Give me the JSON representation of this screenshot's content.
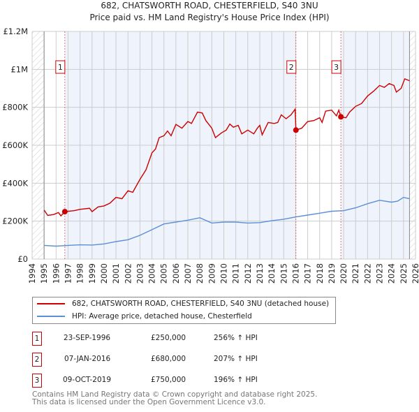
{
  "chart_data": {
    "type": "line",
    "title": "682, CHATSWORTH ROAD, CHESTERFIELD, S40 3NU",
    "subtitle": "Price paid vs. HM Land Registry's House Price Index (HPI)",
    "xlim": [
      1994,
      2026
    ],
    "ylim": [
      0,
      1200000
    ],
    "x_ticks": [
      "1994",
      "1995",
      "1996",
      "1997",
      "1998",
      "1999",
      "2000",
      "2001",
      "2002",
      "2003",
      "2004",
      "2005",
      "2006",
      "2007",
      "2008",
      "2009",
      "2010",
      "2011",
      "2012",
      "2013",
      "2014",
      "2015",
      "2016",
      "2017",
      "2018",
      "2019",
      "2020",
      "2021",
      "2022",
      "2023",
      "2024",
      "2025",
      "2026"
    ],
    "y_ticks": [
      {
        "v": 0,
        "label": "£0"
      },
      {
        "v": 200000,
        "label": "£200K"
      },
      {
        "v": 400000,
        "label": "£400K"
      },
      {
        "v": 600000,
        "label": "£600K"
      },
      {
        "v": 800000,
        "label": "£800K"
      },
      {
        "v": 1000000,
        "label": "£1M"
      },
      {
        "v": 1200000,
        "label": "£1.2M"
      }
    ],
    "grid": true,
    "colors": {
      "property": "#cc0000",
      "hpi": "#5b8fd6",
      "shade": "#eef3fc"
    },
    "series": [
      {
        "name": "682, CHATSWORTH ROAD, CHESTERFIELD, S40 3NU (detached house)",
        "key": "property",
        "x": [
          1995.0,
          1995.3,
          1995.8,
          1996.2,
          1996.4,
          1996.73,
          1997.5,
          1998,
          1998.8,
          1999.0,
          1999.5,
          2000,
          2000.5,
          2001,
          2001.5,
          2002,
          2002.4,
          2003,
          2003.5,
          2004,
          2004.3,
          2004.6,
          2005,
          2005.3,
          2005.6,
          2006,
          2006.5,
          2007,
          2007.3,
          2007.8,
          2008.2,
          2008.5,
          2009,
          2009.3,
          2009.8,
          2010.2,
          2010.5,
          2010.8,
          2011.2,
          2011.5,
          2012,
          2012.5,
          2012.8,
          2013,
          2013.2,
          2013.7,
          2014.2,
          2014.5,
          2014.8,
          2015.2,
          2015.6,
          2015.95,
          2016.02,
          2016.5,
          2017,
          2017.5,
          2018,
          2018.2,
          2018.5,
          2019,
          2019.4,
          2019.6,
          2019.77,
          2020.2,
          2020.5,
          2021,
          2021.5,
          2022,
          2022.5,
          2023,
          2023.4,
          2023.8,
          2024.2,
          2024.4,
          2024.8,
          2025.1,
          2025.5
        ],
        "y": [
          258000,
          230000,
          235000,
          245000,
          228000,
          250000,
          255000,
          262000,
          268000,
          250000,
          275000,
          280000,
          295000,
          325000,
          318000,
          360000,
          352000,
          420000,
          470000,
          560000,
          580000,
          640000,
          650000,
          675000,
          650000,
          710000,
          690000,
          725000,
          715000,
          775000,
          770000,
          730000,
          690000,
          640000,
          665000,
          680000,
          712000,
          695000,
          705000,
          660000,
          680000,
          660000,
          690000,
          705000,
          655000,
          720000,
          715000,
          720000,
          760000,
          740000,
          760000,
          790000,
          680000,
          690000,
          725000,
          730000,
          745000,
          720000,
          780000,
          785000,
          755000,
          785000,
          750000,
          745000,
          775000,
          805000,
          820000,
          860000,
          885000,
          915000,
          905000,
          925000,
          915000,
          880000,
          900000,
          950000,
          940000
        ]
      },
      {
        "name": "HPI: Average price, detached house, Chesterfield",
        "key": "hpi",
        "x": [
          1995,
          1996,
          1997,
          1998,
          1999,
          2000,
          2001,
          2002,
          2003,
          2004,
          2005,
          2006,
          2007,
          2008,
          2009,
          2010,
          2011,
          2012,
          2013,
          2014,
          2015,
          2016,
          2017,
          2018,
          2019,
          2020,
          2021,
          2022,
          2023,
          2024,
          2024.5,
          2025,
          2025.5
        ],
        "y": [
          72000,
          68000,
          72000,
          75000,
          74000,
          80000,
          92000,
          102000,
          125000,
          155000,
          185000,
          195000,
          205000,
          218000,
          190000,
          195000,
          195000,
          190000,
          192000,
          202000,
          210000,
          222000,
          232000,
          242000,
          252000,
          255000,
          270000,
          292000,
          310000,
          300000,
          305000,
          325000,
          318000
        ]
      }
    ],
    "sales": [
      {
        "id": "1",
        "x": 1996.73,
        "y": 250000,
        "date": "23-SEP-1996",
        "price": "£250,000",
        "hpi": "256% ↑ HPI"
      },
      {
        "id": "2",
        "x": 2016.02,
        "y": 680000,
        "date": "07-JAN-2016",
        "price": "£680,000",
        "hpi": "207% ↑ HPI"
      },
      {
        "id": "3",
        "x": 2019.77,
        "y": 750000,
        "date": "09-OCT-2019",
        "price": "£750,000",
        "hpi": "196% ↑ HPI"
      }
    ],
    "data_end": 2025.5
  },
  "footer": {
    "line1": "Contains HM Land Registry data © Crown copyright and database right 2025.",
    "line2": "This data is licensed under the Open Government Licence v3.0."
  }
}
